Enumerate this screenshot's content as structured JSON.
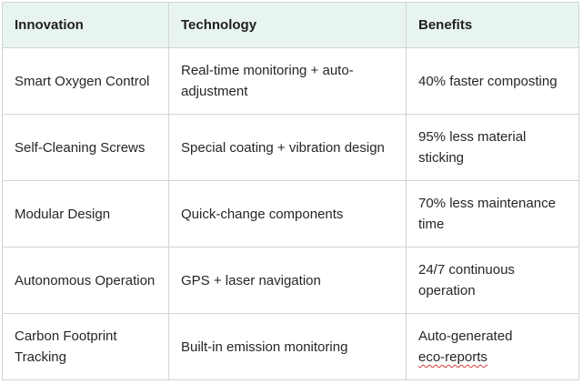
{
  "table": {
    "headers": [
      "Innovation",
      "Technology",
      "Benefits"
    ],
    "rows": [
      {
        "innovation": "Smart Oxygen Control",
        "technology": "Real-time monitoring + auto-adjustment",
        "benefits": "40% faster composting"
      },
      {
        "innovation": "Self-Cleaning Screws",
        "technology": "Special coating + vibration design",
        "benefits": "95% less material sticking"
      },
      {
        "innovation": "Modular Design",
        "technology": "Quick-change components",
        "benefits": "70% less maintenance time"
      },
      {
        "innovation": "Autonomous Operation",
        "technology": "GPS + laser navigation",
        "benefits": "24/7 continuous operation"
      },
      {
        "innovation": "Carbon Footprint Tracking",
        "technology": "Built-in emission monitoring",
        "benefits_prefix": "Auto-generated",
        "benefits_flagged": "eco-reports"
      }
    ]
  },
  "colors": {
    "header_background": "#e8f4f1",
    "border": "#d4d4d4",
    "spellcheck_underline": "#d23c3c"
  }
}
